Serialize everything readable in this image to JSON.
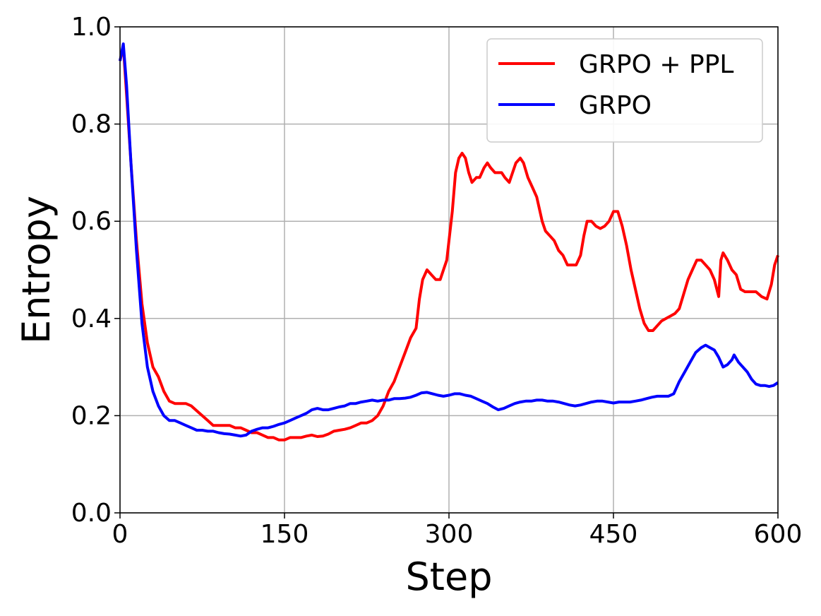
{
  "chart_data": {
    "type": "line",
    "title": "",
    "xlabel": "Step",
    "ylabel": "Entropy",
    "xlim": [
      0,
      600
    ],
    "ylim": [
      0,
      1.0
    ],
    "xticks": [
      0,
      150,
      300,
      450,
      600
    ],
    "yticks": [
      0.0,
      0.2,
      0.4,
      0.6,
      0.8,
      1.0
    ],
    "xtick_labels": [
      "0",
      "150",
      "300",
      "450",
      "600"
    ],
    "ytick_labels": [
      "0.0",
      "0.2",
      "0.4",
      "0.6",
      "0.8",
      "1.0"
    ],
    "grid": true,
    "legend_position": "top-right",
    "series": [
      {
        "name": "GRPO + PPL",
        "color": "#ff0000",
        "points": [
          [
            0,
            0.93
          ],
          [
            3,
            0.96
          ],
          [
            6,
            0.86
          ],
          [
            10,
            0.72
          ],
          [
            15,
            0.56
          ],
          [
            20,
            0.43
          ],
          [
            25,
            0.35
          ],
          [
            30,
            0.3
          ],
          [
            35,
            0.28
          ],
          [
            40,
            0.25
          ],
          [
            45,
            0.23
          ],
          [
            50,
            0.225
          ],
          [
            55,
            0.225
          ],
          [
            60,
            0.225
          ],
          [
            65,
            0.22
          ],
          [
            70,
            0.21
          ],
          [
            75,
            0.2
          ],
          [
            80,
            0.19
          ],
          [
            85,
            0.18
          ],
          [
            90,
            0.18
          ],
          [
            95,
            0.18
          ],
          [
            100,
            0.18
          ],
          [
            105,
            0.175
          ],
          [
            110,
            0.175
          ],
          [
            115,
            0.17
          ],
          [
            120,
            0.165
          ],
          [
            125,
            0.165
          ],
          [
            130,
            0.16
          ],
          [
            135,
            0.155
          ],
          [
            140,
            0.155
          ],
          [
            145,
            0.15
          ],
          [
            150,
            0.15
          ],
          [
            155,
            0.155
          ],
          [
            160,
            0.155
          ],
          [
            165,
            0.155
          ],
          [
            170,
            0.158
          ],
          [
            175,
            0.16
          ],
          [
            180,
            0.157
          ],
          [
            185,
            0.158
          ],
          [
            190,
            0.162
          ],
          [
            195,
            0.168
          ],
          [
            200,
            0.17
          ],
          [
            205,
            0.172
          ],
          [
            210,
            0.175
          ],
          [
            215,
            0.18
          ],
          [
            220,
            0.185
          ],
          [
            225,
            0.185
          ],
          [
            230,
            0.19
          ],
          [
            235,
            0.2
          ],
          [
            240,
            0.22
          ],
          [
            245,
            0.25
          ],
          [
            250,
            0.27
          ],
          [
            255,
            0.3
          ],
          [
            260,
            0.33
          ],
          [
            265,
            0.36
          ],
          [
            270,
            0.38
          ],
          [
            273,
            0.44
          ],
          [
            276,
            0.48
          ],
          [
            280,
            0.5
          ],
          [
            284,
            0.49
          ],
          [
            288,
            0.48
          ],
          [
            292,
            0.48
          ],
          [
            295,
            0.5
          ],
          [
            298,
            0.52
          ],
          [
            300,
            0.56
          ],
          [
            303,
            0.62
          ],
          [
            306,
            0.7
          ],
          [
            309,
            0.73
          ],
          [
            312,
            0.74
          ],
          [
            315,
            0.73
          ],
          [
            318,
            0.7
          ],
          [
            321,
            0.68
          ],
          [
            325,
            0.69
          ],
          [
            328,
            0.69
          ],
          [
            332,
            0.71
          ],
          [
            335,
            0.72
          ],
          [
            338,
            0.71
          ],
          [
            342,
            0.7
          ],
          [
            345,
            0.7
          ],
          [
            348,
            0.7
          ],
          [
            351,
            0.69
          ],
          [
            355,
            0.68
          ],
          [
            358,
            0.7
          ],
          [
            361,
            0.72
          ],
          [
            365,
            0.73
          ],
          [
            368,
            0.72
          ],
          [
            372,
            0.69
          ],
          [
            376,
            0.67
          ],
          [
            380,
            0.65
          ],
          [
            385,
            0.6
          ],
          [
            388,
            0.58
          ],
          [
            392,
            0.57
          ],
          [
            396,
            0.56
          ],
          [
            400,
            0.54
          ],
          [
            404,
            0.53
          ],
          [
            408,
            0.51
          ],
          [
            412,
            0.51
          ],
          [
            416,
            0.51
          ],
          [
            420,
            0.53
          ],
          [
            423,
            0.57
          ],
          [
            426,
            0.6
          ],
          [
            430,
            0.6
          ],
          [
            434,
            0.59
          ],
          [
            438,
            0.585
          ],
          [
            442,
            0.59
          ],
          [
            446,
            0.6
          ],
          [
            450,
            0.62
          ],
          [
            454,
            0.62
          ],
          [
            458,
            0.59
          ],
          [
            462,
            0.55
          ],
          [
            466,
            0.5
          ],
          [
            470,
            0.46
          ],
          [
            474,
            0.42
          ],
          [
            478,
            0.39
          ],
          [
            482,
            0.375
          ],
          [
            486,
            0.375
          ],
          [
            490,
            0.385
          ],
          [
            494,
            0.395
          ],
          [
            498,
            0.4
          ],
          [
            502,
            0.405
          ],
          [
            506,
            0.41
          ],
          [
            510,
            0.42
          ],
          [
            514,
            0.45
          ],
          [
            518,
            0.48
          ],
          [
            522,
            0.5
          ],
          [
            526,
            0.52
          ],
          [
            530,
            0.52
          ],
          [
            534,
            0.51
          ],
          [
            538,
            0.5
          ],
          [
            542,
            0.48
          ],
          [
            546,
            0.445
          ],
          [
            548,
            0.52
          ],
          [
            550,
            0.535
          ],
          [
            554,
            0.52
          ],
          [
            558,
            0.5
          ],
          [
            562,
            0.49
          ],
          [
            566,
            0.46
          ],
          [
            570,
            0.455
          ],
          [
            575,
            0.455
          ],
          [
            580,
            0.455
          ],
          [
            585,
            0.445
          ],
          [
            590,
            0.44
          ],
          [
            594,
            0.47
          ],
          [
            597,
            0.51
          ],
          [
            600,
            0.53
          ]
        ]
      },
      {
        "name": "GRPO",
        "color": "#0000ff",
        "points": [
          [
            0,
            0.93
          ],
          [
            3,
            0.965
          ],
          [
            6,
            0.88
          ],
          [
            10,
            0.72
          ],
          [
            15,
            0.54
          ],
          [
            20,
            0.39
          ],
          [
            25,
            0.3
          ],
          [
            30,
            0.25
          ],
          [
            35,
            0.22
          ],
          [
            40,
            0.2
          ],
          [
            45,
            0.19
          ],
          [
            50,
            0.19
          ],
          [
            55,
            0.185
          ],
          [
            60,
            0.18
          ],
          [
            65,
            0.175
          ],
          [
            70,
            0.17
          ],
          [
            75,
            0.17
          ],
          [
            80,
            0.168
          ],
          [
            85,
            0.168
          ],
          [
            90,
            0.165
          ],
          [
            95,
            0.163
          ],
          [
            100,
            0.162
          ],
          [
            105,
            0.16
          ],
          [
            110,
            0.158
          ],
          [
            115,
            0.16
          ],
          [
            120,
            0.168
          ],
          [
            125,
            0.172
          ],
          [
            130,
            0.175
          ],
          [
            135,
            0.175
          ],
          [
            140,
            0.178
          ],
          [
            145,
            0.182
          ],
          [
            150,
            0.185
          ],
          [
            155,
            0.19
          ],
          [
            160,
            0.195
          ],
          [
            165,
            0.2
          ],
          [
            170,
            0.205
          ],
          [
            175,
            0.212
          ],
          [
            180,
            0.215
          ],
          [
            185,
            0.212
          ],
          [
            190,
            0.212
          ],
          [
            195,
            0.215
          ],
          [
            200,
            0.218
          ],
          [
            205,
            0.22
          ],
          [
            210,
            0.225
          ],
          [
            215,
            0.225
          ],
          [
            220,
            0.228
          ],
          [
            225,
            0.23
          ],
          [
            230,
            0.232
          ],
          [
            235,
            0.23
          ],
          [
            240,
            0.232
          ],
          [
            245,
            0.232
          ],
          [
            250,
            0.235
          ],
          [
            255,
            0.235
          ],
          [
            260,
            0.236
          ],
          [
            265,
            0.238
          ],
          [
            270,
            0.242
          ],
          [
            275,
            0.247
          ],
          [
            280,
            0.248
          ],
          [
            285,
            0.245
          ],
          [
            290,
            0.242
          ],
          [
            295,
            0.24
          ],
          [
            300,
            0.242
          ],
          [
            305,
            0.245
          ],
          [
            310,
            0.245
          ],
          [
            315,
            0.242
          ],
          [
            320,
            0.24
          ],
          [
            325,
            0.235
          ],
          [
            330,
            0.23
          ],
          [
            335,
            0.225
          ],
          [
            340,
            0.218
          ],
          [
            345,
            0.212
          ],
          [
            350,
            0.215
          ],
          [
            355,
            0.22
          ],
          [
            360,
            0.225
          ],
          [
            365,
            0.228
          ],
          [
            370,
            0.23
          ],
          [
            375,
            0.23
          ],
          [
            380,
            0.232
          ],
          [
            385,
            0.232
          ],
          [
            390,
            0.23
          ],
          [
            395,
            0.23
          ],
          [
            400,
            0.228
          ],
          [
            405,
            0.225
          ],
          [
            410,
            0.222
          ],
          [
            415,
            0.22
          ],
          [
            420,
            0.222
          ],
          [
            425,
            0.225
          ],
          [
            430,
            0.228
          ],
          [
            435,
            0.23
          ],
          [
            440,
            0.23
          ],
          [
            445,
            0.228
          ],
          [
            450,
            0.226
          ],
          [
            455,
            0.228
          ],
          [
            460,
            0.228
          ],
          [
            465,
            0.228
          ],
          [
            470,
            0.23
          ],
          [
            475,
            0.232
          ],
          [
            480,
            0.235
          ],
          [
            485,
            0.238
          ],
          [
            490,
            0.24
          ],
          [
            495,
            0.24
          ],
          [
            500,
            0.24
          ],
          [
            505,
            0.245
          ],
          [
            510,
            0.27
          ],
          [
            515,
            0.29
          ],
          [
            520,
            0.31
          ],
          [
            525,
            0.33
          ],
          [
            530,
            0.34
          ],
          [
            534,
            0.345
          ],
          [
            538,
            0.34
          ],
          [
            542,
            0.335
          ],
          [
            546,
            0.32
          ],
          [
            550,
            0.3
          ],
          [
            554,
            0.305
          ],
          [
            558,
            0.315
          ],
          [
            560,
            0.325
          ],
          [
            564,
            0.31
          ],
          [
            568,
            0.3
          ],
          [
            572,
            0.29
          ],
          [
            576,
            0.275
          ],
          [
            580,
            0.265
          ],
          [
            584,
            0.262
          ],
          [
            588,
            0.262
          ],
          [
            592,
            0.26
          ],
          [
            596,
            0.262
          ],
          [
            600,
            0.268
          ]
        ]
      }
    ]
  }
}
